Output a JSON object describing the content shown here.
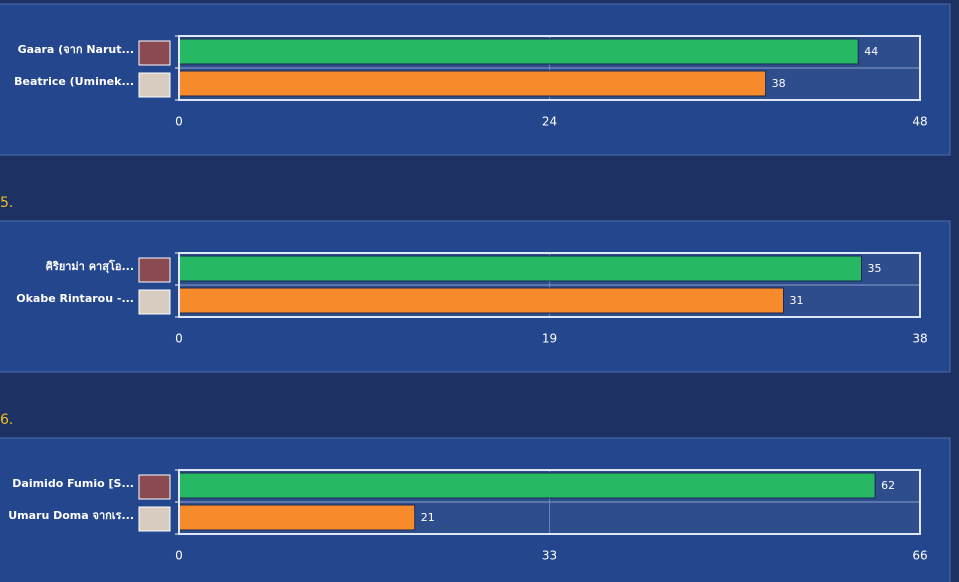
{
  "chart_data": [
    {
      "type": "hbar",
      "categories": [
        "Gaara (จาก Narut...",
        "Beatrice (Uminek..."
      ],
      "values": [
        44,
        38
      ],
      "colors": [
        "#27b863",
        "#f78a2a"
      ],
      "xlim": [
        0,
        48
      ],
      "xticks": [
        0,
        24,
        48
      ],
      "grid": true
    },
    {
      "type": "hbar",
      "heading": "5.",
      "categories": [
        "คิริยาม่า คาสุโอ...",
        "Okabe Rintarou -..."
      ],
      "values": [
        35,
        31
      ],
      "colors": [
        "#27b863",
        "#f78a2a"
      ],
      "xlim": [
        0,
        38
      ],
      "xticks": [
        0,
        19,
        38
      ],
      "grid": true
    },
    {
      "type": "hbar",
      "heading": "6.",
      "categories": [
        "Daimido Fumio [S...",
        "Umaru Doma จากเร..."
      ],
      "values": [
        62,
        21
      ],
      "colors": [
        "#27b863",
        "#f78a2a"
      ],
      "xlim": [
        0,
        66
      ],
      "xticks": [
        0,
        33,
        66
      ],
      "grid": true
    }
  ]
}
